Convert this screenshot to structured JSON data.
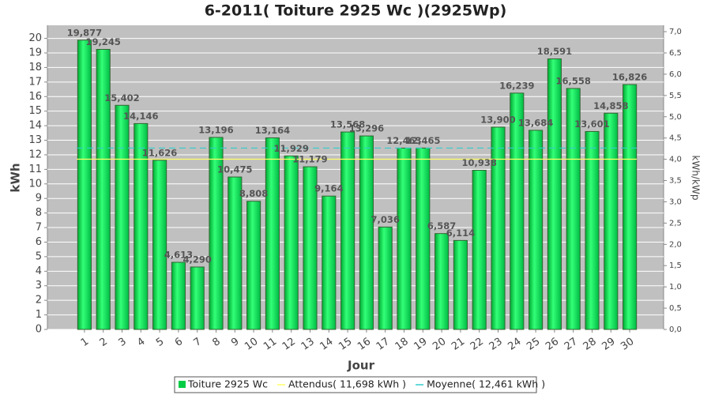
{
  "chart_data": {
    "type": "bar",
    "title": "6-2011( Toiture 2925 Wc )(2925Wp)",
    "x_label": "Jour",
    "y_label": "kWh",
    "y2_label": "kWh/kWp",
    "categories": [
      "1",
      "2",
      "3",
      "4",
      "5",
      "6",
      "7",
      "8",
      "9",
      "10",
      "11",
      "12",
      "13",
      "14",
      "15",
      "16",
      "17",
      "18",
      "19",
      "20",
      "21",
      "22",
      "23",
      "24",
      "25",
      "26",
      "27",
      "28",
      "29",
      "30"
    ],
    "series": [
      {
        "name": "Toiture 2925 Wc",
        "color": "#00cc44",
        "values": [
          19.877,
          19.245,
          15.402,
          14.146,
          11.626,
          4.613,
          4.29,
          13.196,
          10.475,
          8.808,
          13.164,
          11.929,
          11.179,
          9.164,
          13.568,
          13.296,
          7.036,
          12.463,
          12.465,
          6.587,
          6.114,
          10.938,
          13.9,
          16.239,
          13.684,
          18.591,
          16.558,
          13.601,
          14.858,
          16.826
        ],
        "value_labels": [
          "19,877",
          "19,245",
          "15,402",
          "14,146",
          "11,626",
          "4,613",
          "4,290",
          "13,196",
          "10,475",
          "8,808",
          "13,164",
          "11,929",
          "11,179",
          "9,164",
          "13,568",
          "13,296",
          "7,036",
          "12,463",
          "12,465",
          "6,587",
          "6,114",
          "10,938",
          "13,900",
          "16,239",
          "13,684",
          "18,591",
          "16,558",
          "13,601",
          "14,858",
          "16,826"
        ]
      }
    ],
    "reference_lines": [
      {
        "name": "Attendus( 11,698 kWh )",
        "value": 11.698,
        "color": "#ffff66",
        "dashed": false
      },
      {
        "name": "Moyenne( 12,461 kWh )",
        "value": 12.461,
        "color": "#33cccc",
        "dashed": true
      }
    ],
    "ylim": [
      0,
      20.9
    ],
    "yticks": [
      0,
      1,
      2,
      3,
      4,
      5,
      6,
      7,
      8,
      9,
      10,
      11,
      12,
      13,
      14,
      15,
      16,
      17,
      18,
      19,
      20
    ],
    "y2lim": [
      0,
      7.15
    ],
    "y2ticks": [
      {
        "value": 0,
        "label": "0,0"
      },
      {
        "value": 0.5,
        "label": "0,5"
      },
      {
        "value": 1,
        "label": "1,0"
      },
      {
        "value": 1.5,
        "label": "1,5"
      },
      {
        "value": 2,
        "label": "2,0"
      },
      {
        "value": 2.5,
        "label": "2,5"
      },
      {
        "value": 3,
        "label": "3,0"
      },
      {
        "value": 3.5,
        "label": "3,5"
      },
      {
        "value": 4,
        "label": "4,0"
      },
      {
        "value": 4.5,
        "label": "4,5"
      },
      {
        "value": 5,
        "label": "5,0"
      },
      {
        "value": 5.5,
        "label": "5,5"
      },
      {
        "value": 6,
        "label": "6,0"
      },
      {
        "value": 6.5,
        "label": "6,5"
      },
      {
        "value": 7,
        "label": "7,0"
      }
    ],
    "grid": true
  }
}
